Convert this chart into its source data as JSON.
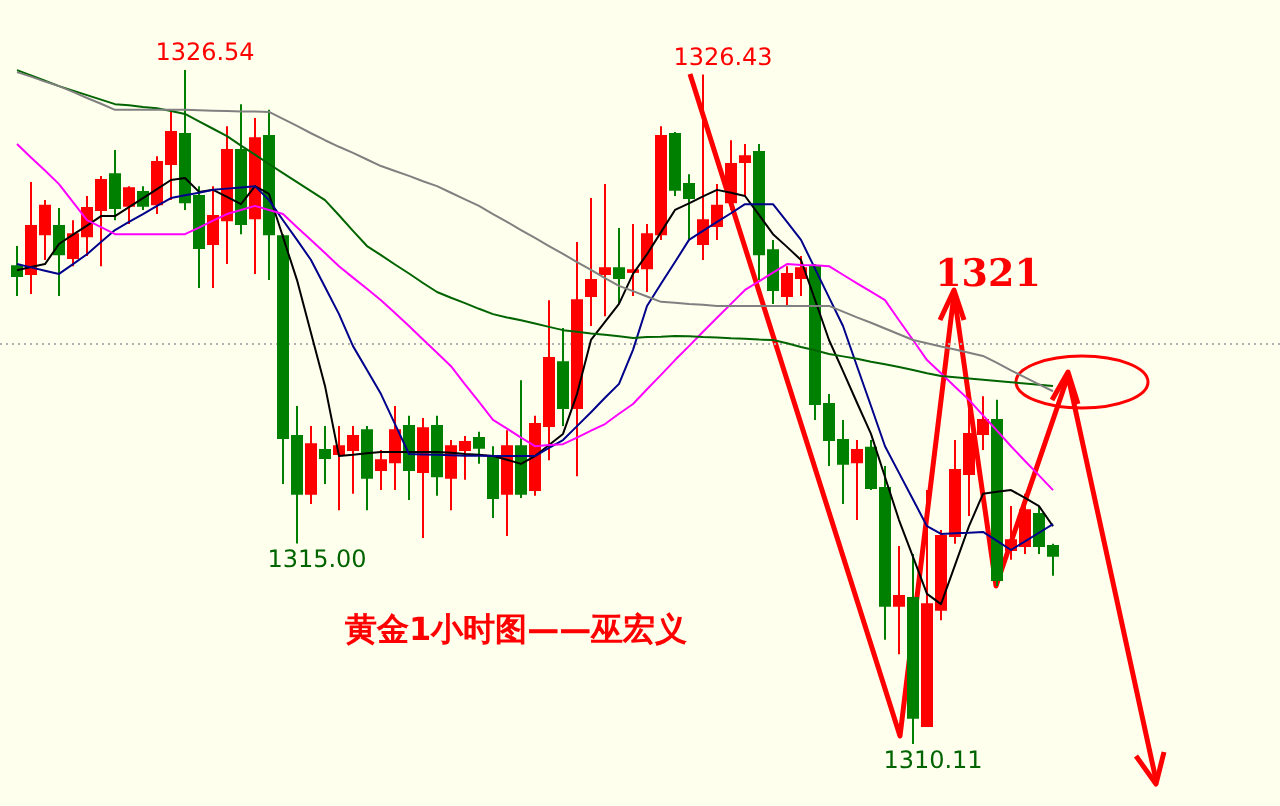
{
  "chart_data": {
    "type": "candlestick",
    "title": "黄金1小时图——巫宏义",
    "categories": [
      null,
      null,
      null,
      null,
      null,
      null,
      null,
      null,
      null,
      null,
      null,
      null,
      null,
      null,
      null,
      null,
      null,
      null,
      null,
      null,
      null,
      null,
      null,
      null,
      null,
      null,
      null,
      null,
      null,
      null,
      null,
      null,
      null,
      null,
      null,
      null,
      null,
      null,
      null,
      null,
      null,
      null,
      null,
      null,
      null,
      null,
      null,
      null,
      null,
      null,
      null,
      null,
      null,
      null,
      null,
      null,
      null,
      null,
      null,
      null,
      null,
      null,
      null,
      null,
      null,
      null,
      null,
      null,
      null,
      null,
      null,
      null,
      null,
      null,
      null
    ],
    "ohlc": [
      [
        1321.76,
        1322.25,
        1321.03,
        1321.52
      ],
      [
        1321.57,
        1323.81,
        1321.08,
        1322.74
      ],
      [
        1322.54,
        1323.37,
        1321.91,
        1323.23
      ],
      [
        1322.74,
        1323.18,
        1321.03,
        1322.05
      ],
      [
        1321.96,
        1322.88,
        1321.76,
        1322.54
      ],
      [
        1322.49,
        1323.47,
        1322.01,
        1323.18
      ],
      [
        1323.13,
        1323.96,
        1321.76,
        1323.86
      ],
      [
        1324.0,
        1324.59,
        1322.88,
        1323.18
      ],
      [
        1323.23,
        1323.71,
        1322.79,
        1323.66
      ],
      [
        1323.57,
        1323.71,
        1323.13,
        1323.23
      ],
      [
        1323.27,
        1324.44,
        1323.03,
        1324.3
      ],
      [
        1324.25,
        1325.57,
        1323.37,
        1325.03
      ],
      [
        1324.98,
        1326.54,
        1323.13,
        1323.32
      ],
      [
        1323.47,
        1323.71,
        1321.23,
        1322.2
      ],
      [
        1322.3,
        1323.71,
        1321.23,
        1322.98
      ],
      [
        1322.88,
        1325.17,
        1321.81,
        1324.59
      ],
      [
        1324.59,
        1325.71,
        1322.54,
        1322.79
      ],
      [
        1322.93,
        1325.37,
        1321.57,
        1324.88
      ],
      [
        1324.93,
        1325.57,
        1321.42,
        1322.54
      ],
      [
        1322.49,
        1322.54,
        1316.45,
        1317.57
      ],
      [
        1317.62,
        1318.35,
        1315.0,
        1316.21
      ],
      [
        1316.21,
        1317.86,
        1315.96,
        1317.42
      ],
      [
        1317.28,
        1317.86,
        1316.45,
        1317.08
      ],
      [
        1317.18,
        1317.86,
        1315.81,
        1317.37
      ],
      [
        1317.28,
        1317.86,
        1316.21,
        1317.62
      ],
      [
        1317.76,
        1317.86,
        1315.81,
        1316.6
      ],
      [
        1316.79,
        1317.28,
        1316.3,
        1317.03
      ],
      [
        1316.98,
        1318.35,
        1316.3,
        1317.76
      ],
      [
        1317.86,
        1318.11,
        1316.06,
        1316.79
      ],
      [
        1316.74,
        1318.06,
        1315.13,
        1317.81
      ],
      [
        1317.86,
        1318.11,
        1316.16,
        1316.64
      ],
      [
        1316.6,
        1317.52,
        1315.81,
        1317.37
      ],
      [
        1317.28,
        1317.62,
        1316.55,
        1317.47
      ],
      [
        1317.57,
        1317.72,
        1316.94,
        1317.33
      ],
      [
        1317.13,
        1317.37,
        1315.62,
        1316.11
      ],
      [
        1316.21,
        1317.76,
        1315.18,
        1317.37
      ],
      [
        1317.37,
        1318.98,
        1316.11,
        1316.21
      ],
      [
        1316.3,
        1318.11,
        1316.16,
        1317.91
      ],
      [
        1317.86,
        1320.93,
        1317.03,
        1319.52
      ],
      [
        1319.42,
        1320.25,
        1317.86,
        1318.3
      ],
      [
        1318.3,
        1322.35,
        1316.64,
        1320.93
      ],
      [
        1321.03,
        1323.42,
        1320.3,
        1321.42
      ],
      [
        1321.57,
        1323.76,
        1320.54,
        1321.71
      ],
      [
        1321.71,
        1322.69,
        1320.84,
        1321.47
      ],
      [
        1321.62,
        1322.79,
        1321.03,
        1321.66
      ],
      [
        1321.71,
        1322.79,
        1321.13,
        1322.54
      ],
      [
        1322.54,
        1325.17,
        1322.4,
        1324.93
      ],
      [
        1324.98,
        1325.03,
        1323.47,
        1323.62
      ],
      [
        1323.76,
        1324.0,
        1322.4,
        1323.42
      ],
      [
        1322.3,
        1326.43,
        1321.91,
        1322.88
      ],
      [
        1322.74,
        1323.76,
        1322.4,
        1323.23
      ],
      [
        1323.32,
        1324.83,
        1323.13,
        1324.25
      ],
      [
        1324.3,
        1324.74,
        1323.47,
        1324.44
      ],
      [
        1324.54,
        1324.74,
        1321.42,
        1322.05
      ],
      [
        1322.15,
        1322.4,
        1320.84,
        1321.18
      ],
      [
        1321.03,
        1321.76,
        1320.79,
        1321.57
      ],
      [
        1321.47,
        1322.01,
        1321.03,
        1321.71
      ],
      [
        1321.76,
        1321.81,
        1318.01,
        1318.4
      ],
      [
        1318.4,
        1318.64,
        1316.89,
        1317.52
      ],
      [
        1317.52,
        1318.01,
        1315.96,
        1316.94
      ],
      [
        1316.98,
        1317.52,
        1315.57,
        1317.28
      ],
      [
        1317.33,
        1317.52,
        1316.3,
        1316.35
      ],
      [
        1316.35,
        1316.89,
        1312.65,
        1313.48
      ],
      [
        1313.48,
        1314.94,
        1312.3,
        1313.72
      ],
      [
        1313.67,
        1314.74,
        1310.11,
        1310.75
      ],
      [
        1310.55,
        1316.3,
        1310.55,
        1313.52
      ],
      [
        1313.38,
        1315.33,
        1313.13,
        1315.18
      ],
      [
        1315.18,
        1317.52,
        1314.99,
        1316.79
      ],
      [
        1316.69,
        1318.4,
        1315.67,
        1317.67
      ],
      [
        1317.67,
        1318.59,
        1317.28,
        1318.01
      ],
      [
        1318.01,
        1318.5,
        1313.96,
        1314.11
      ],
      [
        1314.84,
        1315.91,
        1314.6,
        1315.08
      ],
      [
        1314.94,
        1316.21,
        1314.74,
        1315.81
      ],
      [
        1315.72,
        1315.91,
        1314.74,
        1314.94
      ],
      [
        1314.94,
        1314.99,
        1314.21,
        1314.7
      ]
    ],
    "colors": [
      "#008000",
      "#ff0000",
      "#ff0000",
      "#008000",
      "#ff0000",
      "#ff0000",
      "#ff0000",
      "#008000",
      "#ff0000",
      "#008000",
      "#ff0000",
      "#ff0000",
      "#008000",
      "#008000",
      "#ff0000",
      "#ff0000",
      "#008000",
      "#ff0000",
      "#008000",
      "#008000",
      "#008000",
      "#ff0000",
      "#008000",
      "#ff0000",
      "#ff0000",
      "#008000",
      "#ff0000",
      "#ff0000",
      "#008000",
      "#ff0000",
      "#008000",
      "#ff0000",
      "#ff0000",
      "#008000",
      "#008000",
      "#ff0000",
      "#008000",
      "#ff0000",
      "#ff0000",
      "#008000",
      "#ff0000",
      "#ff0000",
      "#ff0000",
      "#008000",
      "#ff0000",
      "#ff0000",
      "#ff0000",
      "#008000",
      "#008000",
      "#ff0000",
      "#ff0000",
      "#ff0000",
      "#ff0000",
      "#008000",
      "#008000",
      "#ff0000",
      "#ff0000",
      "#008000",
      "#008000",
      "#008000",
      "#ff0000",
      "#008000",
      "#008000",
      "#ff0000",
      "#008000",
      "#ff0000",
      "#ff0000",
      "#ff0000",
      "#ff0000",
      "#ff0000",
      "#008000",
      "#ff0000",
      "#ff0000",
      "#008000",
      "#008000"
    ],
    "value_labels": [
      null,
      null,
      null,
      null,
      null,
      null,
      null,
      null,
      null,
      null,
      null,
      null,
      "1326.54",
      null,
      null,
      null,
      null,
      null,
      null,
      null,
      "1315.00",
      null,
      null,
      null,
      null,
      null,
      null,
      null,
      null,
      null,
      null,
      null,
      null,
      null,
      null,
      null,
      null,
      null,
      null,
      null,
      null,
      null,
      null,
      null,
      null,
      null,
      null,
      null,
      null,
      "1326.43",
      null,
      null,
      null,
      null,
      null,
      null,
      null,
      null,
      null,
      null,
      null,
      null,
      null,
      null,
      "1310.11",
      null,
      null,
      null,
      null,
      null,
      null,
      null,
      null,
      null,
      null
    ],
    "series": [
      {
        "type": "line",
        "color": "#000000",
        "values": [
          1321.66,
          1321.74,
          1321.81,
          1322.3,
          1322.53,
          1322.75,
          1322.98,
          1322.98,
          1323.2,
          1323.42,
          1323.64,
          1323.86,
          1323.91,
          1323.57,
          1323.62,
          1323.45,
          1323.27,
          1323.71,
          1323.52,
          1322.47,
          1321.42,
          1320.13,
          1318.84,
          1317.13,
          1317.16,
          1317.2,
          1317.23,
          1317.23,
          1317.23,
          1317.23,
          1317.23,
          1317.21,
          1317.18,
          1317.16,
          1317.13,
          1317.04,
          1316.94,
          1317.13,
          1317.4,
          1317.67,
          1318.64,
          1319.96,
          1320.4,
          1320.84,
          1321.57,
          1322.05,
          1322.59,
          1323.13,
          1323.29,
          1323.46,
          1323.62,
          1323.55,
          1323.47,
          1323.01,
          1322.54,
          1322.23,
          1321.91,
          1320.94,
          1319.96,
          1319.2,
          1318.43,
          1317.67,
          1316.62,
          1315.57,
          1314.67,
          1313.77,
          1313.52,
          1314.47,
          1315.42,
          1316.21,
          1316.26,
          1316.3,
          1316.11,
          1315.91,
          1315.42
        ]
      },
      {
        "type": "line",
        "color": "#00008b",
        "values": [
          1321.81,
          1321.73,
          1321.65,
          1321.57,
          1321.81,
          1322.05,
          1322.35,
          1322.64,
          1322.84,
          1323.03,
          1323.23,
          1323.42,
          1323.49,
          1323.55,
          1323.62,
          1323.65,
          1323.68,
          1323.71,
          1323.37,
          1322.88,
          1322.4,
          1321.91,
          1321.25,
          1320.59,
          1319.81,
          1319.23,
          1318.64,
          1317.91,
          1317.18,
          1317.17,
          1317.16,
          1317.15,
          1317.14,
          1317.14,
          1317.13,
          1317.13,
          1317.13,
          1317.13,
          1317.33,
          1317.52,
          1317.86,
          1318.2,
          1318.55,
          1318.89,
          1319.72,
          1320.79,
          1321.33,
          1321.86,
          1322.4,
          1322.62,
          1322.84,
          1323.05,
          1323.27,
          1323.27,
          1323.27,
          1322.84,
          1322.4,
          1321.7,
          1321.0,
          1320.3,
          1319.32,
          1318.35,
          1317.37,
          1316.72,
          1316.07,
          1315.42,
          1315.23,
          1315.25,
          1315.26,
          1315.28,
          1315.06,
          1314.84,
          1315.05,
          1315.26,
          1315.47
        ]
      },
      {
        "type": "line",
        "color": "#ff00ff",
        "values": [
          1324.74,
          1324.41,
          1324.09,
          1323.76,
          1323.32,
          1322.88,
          1322.71,
          1322.54,
          1322.54,
          1322.54,
          1322.54,
          1322.54,
          1322.54,
          1322.7,
          1322.87,
          1323.03,
          1323.13,
          1323.23,
          1323.13,
          1323.03,
          1322.71,
          1322.4,
          1322.08,
          1321.76,
          1321.48,
          1321.21,
          1320.93,
          1320.62,
          1320.3,
          1319.97,
          1319.65,
          1319.32,
          1318.88,
          1318.45,
          1318.01,
          1317.8,
          1317.58,
          1317.37,
          1317.4,
          1317.42,
          1317.58,
          1317.75,
          1317.91,
          1318.16,
          1318.4,
          1318.76,
          1319.11,
          1319.47,
          1319.81,
          1320.16,
          1320.5,
          1320.84,
          1321.18,
          1321.39,
          1321.6,
          1321.81,
          1321.79,
          1321.78,
          1321.76,
          1321.55,
          1321.34,
          1321.14,
          1320.93,
          1320.44,
          1319.96,
          1319.47,
          1319.15,
          1318.82,
          1318.5,
          1318.12,
          1317.75,
          1317.37,
          1317.01,
          1316.66,
          1316.3
        ]
      },
      {
        "type": "line",
        "color": "#006400",
        "values": [
          1326.54,
          1326.41,
          1326.28,
          1326.15,
          1326.04,
          1325.93,
          1325.82,
          1325.71,
          1325.68,
          1325.64,
          1325.61,
          1325.54,
          1325.47,
          1325.29,
          1325.11,
          1324.93,
          1324.7,
          1324.48,
          1324.25,
          1324.03,
          1323.81,
          1323.59,
          1323.37,
          1323.0,
          1322.62,
          1322.25,
          1322.03,
          1321.8,
          1321.58,
          1321.35,
          1321.13,
          1320.99,
          1320.86,
          1320.72,
          1320.59,
          1320.51,
          1320.44,
          1320.36,
          1320.28,
          1320.2,
          1320.16,
          1320.12,
          1320.09,
          1320.05,
          1320.01,
          1320.03,
          1320.04,
          1320.06,
          1320.05,
          1320.03,
          1320.02,
          1320.0,
          1319.99,
          1319.97,
          1319.96,
          1319.88,
          1319.79,
          1319.71,
          1319.62,
          1319.56,
          1319.5,
          1319.43,
          1319.37,
          1319.3,
          1319.23,
          1319.15,
          1319.08,
          1319.05,
          1319.02,
          1318.99,
          1318.96,
          1318.93,
          1318.9,
          1318.87,
          1318.84
        ]
      },
      {
        "type": "line",
        "color": "#808080",
        "values": [
          1326.49,
          1326.38,
          1326.26,
          1326.15,
          1326.01,
          1325.86,
          1325.72,
          1325.57,
          1325.57,
          1325.57,
          1325.57,
          1325.57,
          1325.57,
          1325.56,
          1325.55,
          1325.54,
          1325.53,
          1325.53,
          1325.52,
          1325.35,
          1325.18,
          1325.0,
          1324.83,
          1324.67,
          1324.52,
          1324.36,
          1324.2,
          1324.08,
          1323.96,
          1323.83,
          1323.71,
          1323.55,
          1323.39,
          1323.23,
          1323.03,
          1322.84,
          1322.64,
          1322.45,
          1322.25,
          1322.06,
          1321.86,
          1321.67,
          1321.47,
          1321.28,
          1321.15,
          1321.02,
          1320.89,
          1320.87,
          1320.84,
          1320.82,
          1320.79,
          1320.79,
          1320.79,
          1320.79,
          1320.79,
          1320.79,
          1320.79,
          1320.79,
          1320.79,
          1320.65,
          1320.51,
          1320.38,
          1320.24,
          1320.1,
          1319.96,
          1319.88,
          1319.8,
          1319.73,
          1319.65,
          1319.57,
          1319.4,
          1319.22,
          1319.05,
          1318.88,
          1318.71
        ]
      }
    ],
    "ref_lines": [
      {
        "axis": "y",
        "value": 1319.86,
        "color": "#b0b0b0",
        "line_style": "dotted"
      }
    ],
    "annotations": [
      "1321"
    ]
  }
}
